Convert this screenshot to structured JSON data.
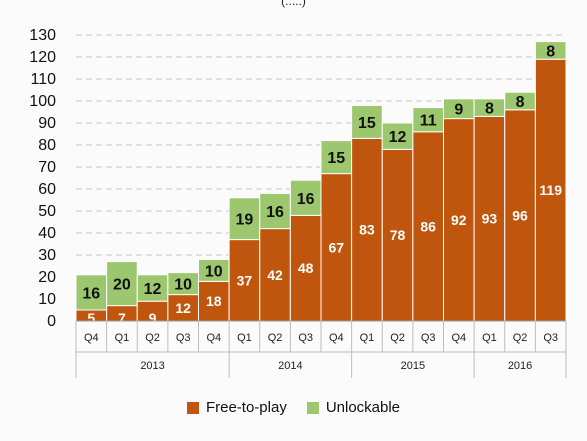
{
  "chart_data": {
    "type": "bar",
    "stacked": true,
    "title": "",
    "xlabel": "",
    "ylabel": "",
    "ylim": [
      0,
      130
    ],
    "yticks": [
      0,
      10,
      20,
      30,
      40,
      50,
      60,
      70,
      80,
      90,
      100,
      110,
      120,
      130
    ],
    "grid": "horizontal-dashed",
    "legend_position": "bottom",
    "categories": [
      "Q4",
      "Q1",
      "Q2",
      "Q3",
      "Q4",
      "Q1",
      "Q2",
      "Q3",
      "Q4",
      "Q1",
      "Q2",
      "Q3",
      "Q4",
      "Q1",
      "Q2",
      "Q3"
    ],
    "years": [
      {
        "label": "2013",
        "span": 5
      },
      {
        "label": "2014",
        "span": 4
      },
      {
        "label": "2015",
        "span": 4
      },
      {
        "label": "2016",
        "span": 3
      }
    ],
    "series": [
      {
        "name": "Free-to-play",
        "color": "#c0560e",
        "values": [
          5,
          7,
          9,
          12,
          18,
          37,
          42,
          48,
          67,
          83,
          78,
          86,
          92,
          93,
          96,
          119
        ]
      },
      {
        "name": "Unlockable",
        "color": "#9dc76f",
        "values": [
          16,
          20,
          12,
          10,
          10,
          19,
          16,
          16,
          15,
          15,
          12,
          11,
          9,
          8,
          8,
          8
        ]
      }
    ]
  }
}
